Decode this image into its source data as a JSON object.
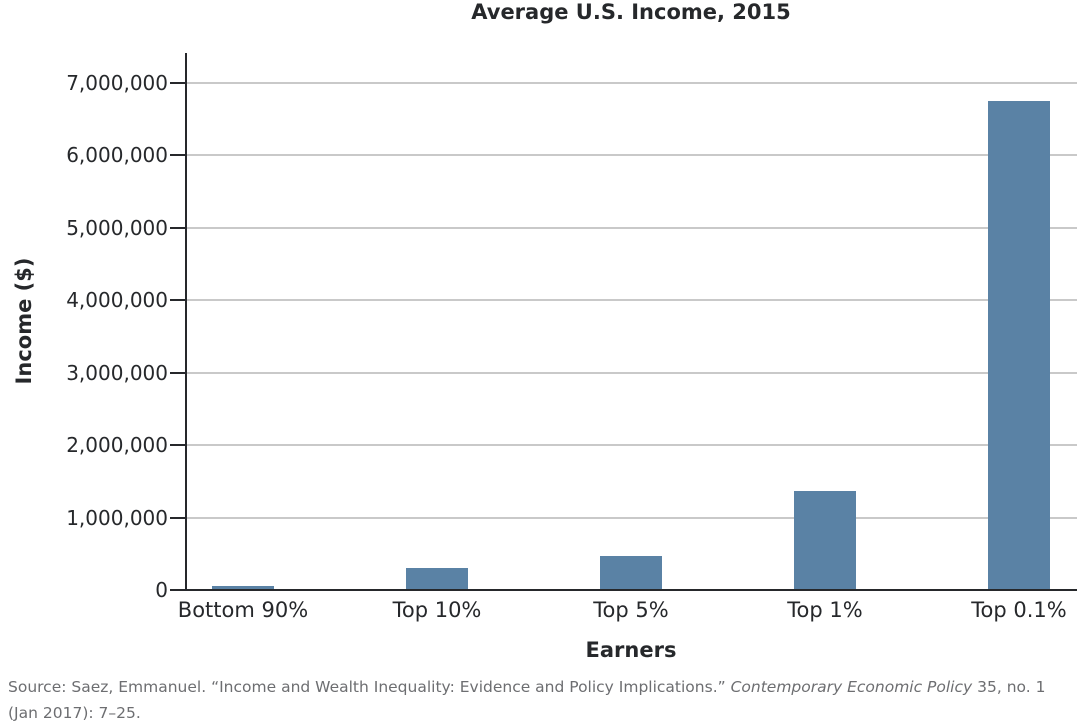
{
  "chart_data": {
    "type": "bar",
    "title": "Average U.S. Income, 2015",
    "xlabel": "Earners",
    "ylabel": "Income ($)",
    "categories": [
      "Bottom 90%",
      "Top 10%",
      "Top 5%",
      "Top 1%",
      "Top 0.1%"
    ],
    "values": [
      50000,
      310000,
      475000,
      1360000,
      6750000
    ],
    "ylim": [
      0,
      7000000
    ],
    "ytick_interval": 1000000,
    "ytick_labels": [
      "0",
      "1,000,000",
      "2,000,000",
      "3,000,000",
      "4,000,000",
      "5,000,000",
      "6,000,000",
      "7,000,000"
    ],
    "grid": true,
    "legend": false
  },
  "source": {
    "segments": {
      "prefix": "Source: Saez, Emmanuel. “Income and Wealth Inequality: Evidence and Policy Implications.” ",
      "journal": "Contemporary Economic Policy",
      "suffix": " 35, no. 1 (Jan 2017): 7–25."
    }
  },
  "colors": {
    "bar": "#5a82a5",
    "gridline": "#c9c9c9",
    "axis": "#26282b",
    "text": "#26282b",
    "source_text": "#6d6e71"
  }
}
